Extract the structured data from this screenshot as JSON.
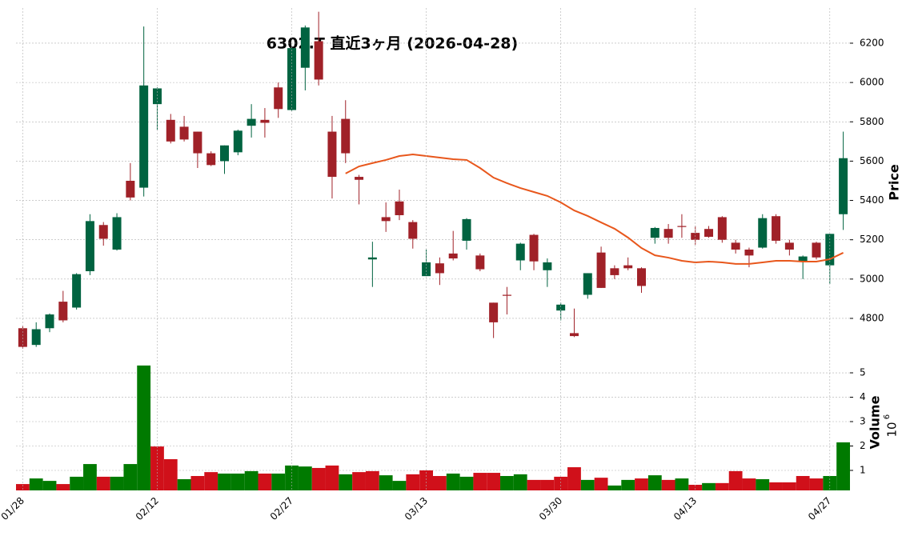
{
  "chart_data": [
    {
      "type": "candlestick",
      "title": "6302.T 直近3ヶ月 (2026-04-28)",
      "ylabel": "Price",
      "open": [
        4750,
        4665,
        4750,
        4885,
        4855,
        5040,
        5275,
        5150,
        5500,
        5465,
        5890,
        5810,
        5775,
        5750,
        5640,
        5600,
        5645,
        5780,
        5810,
        5975,
        5860,
        6075,
        6210,
        5750,
        5815,
        5520,
        5100,
        5315,
        5395,
        5290,
        5015,
        5080,
        5130,
        5195,
        5120,
        4880,
        4920,
        5095,
        5225,
        5045,
        4840,
        4725,
        4920,
        5135,
        5055,
        5070,
        5055,
        5210,
        5255,
        5270,
        5235,
        5255,
        5315,
        5185,
        5150,
        5160,
        5320,
        5185,
        5090,
        5185,
        5070,
        5330
      ],
      "high": [
        4760,
        4780,
        4825,
        4940,
        5030,
        5330,
        5290,
        5335,
        5590,
        6285,
        5975,
        5840,
        5830,
        5750,
        5650,
        5680,
        5760,
        5890,
        5870,
        6000,
        6180,
        6290,
        6360,
        5830,
        5910,
        5530,
        5190,
        5390,
        5455,
        5300,
        5150,
        5110,
        5245,
        5310,
        5130,
        4880,
        4960,
        5185,
        5230,
        5105,
        4880,
        4850,
        5030,
        5165,
        5070,
        5110,
        5060,
        5265,
        5280,
        5330,
        5270,
        5270,
        5320,
        5200,
        5160,
        5330,
        5330,
        5200,
        5120,
        5190,
        5230,
        5750
      ],
      "low": [
        4645,
        4655,
        4730,
        4780,
        4845,
        5020,
        5170,
        5145,
        5400,
        5420,
        5760,
        5690,
        5700,
        5565,
        5575,
        5535,
        5630,
        5720,
        5720,
        5820,
        5855,
        5960,
        5985,
        5410,
        5590,
        5380,
        4960,
        5240,
        5300,
        5155,
        5015,
        4970,
        5095,
        5150,
        5040,
        4700,
        4820,
        5045,
        5045,
        4960,
        4790,
        4705,
        4900,
        4955,
        5000,
        5045,
        4930,
        5180,
        5180,
        5210,
        5175,
        5210,
        5185,
        5130,
        5060,
        5155,
        5180,
        5120,
        5000,
        5100,
        4975,
        5250
      ],
      "close": [
        4655,
        4745,
        4820,
        4790,
        5025,
        5295,
        5205,
        5315,
        5415,
        5985,
        5970,
        5700,
        5710,
        5640,
        5580,
        5680,
        5755,
        5815,
        5795,
        5865,
        6175,
        6280,
        6015,
        5520,
        5640,
        5505,
        5110,
        5295,
        5325,
        5205,
        5085,
        5030,
        5105,
        5305,
        5050,
        4780,
        4915,
        5180,
        5090,
        5085,
        4870,
        4710,
        5030,
        4955,
        5020,
        5055,
        4965,
        5260,
        5210,
        5265,
        5200,
        5215,
        5200,
        5150,
        5120,
        5310,
        5195,
        5150,
        5115,
        5110,
        5230,
        5615
      ],
      "moving_average": {
        "color": "#e8571c",
        "values": [
          null,
          null,
          null,
          null,
          null,
          null,
          null,
          null,
          null,
          null,
          null,
          null,
          null,
          null,
          null,
          null,
          null,
          null,
          null,
          null,
          null,
          null,
          null,
          null,
          5537,
          5573,
          5590,
          5606,
          5626,
          5634,
          5626,
          5618,
          5610,
          5606,
          5565,
          5516,
          5488,
          5463,
          5443,
          5423,
          5390,
          5349,
          5321,
          5288,
          5256,
          5211,
          5158,
          5121,
          5109,
          5093,
          5085,
          5089,
          5085,
          5077,
          5077,
          5085,
          5093,
          5093,
          5089,
          5089,
          5101,
          5134
        ]
      },
      "up_color": "#006340",
      "down_color": "#a02128",
      "ylim": [
        4629,
        6379
      ],
      "yticks": [
        4800,
        5000,
        5200,
        5400,
        5600,
        5800,
        6000,
        6200
      ],
      "grid": true
    },
    {
      "type": "bar",
      "ylabel": "Volume",
      "offset_base": "10",
      "offset_exponent": "6",
      "categories": [
        "01/28",
        null,
        null,
        null,
        null,
        null,
        null,
        null,
        null,
        null,
        "02/12",
        null,
        null,
        null,
        null,
        null,
        null,
        null,
        null,
        null,
        "02/27",
        null,
        null,
        null,
        null,
        null,
        null,
        null,
        null,
        null,
        "03/13",
        null,
        null,
        null,
        null,
        null,
        null,
        null,
        null,
        null,
        "03/30",
        null,
        null,
        null,
        null,
        null,
        null,
        null,
        null,
        null,
        "04/13",
        null,
        null,
        null,
        null,
        null,
        null,
        null,
        null,
        null,
        "04/27",
        null
      ],
      "values": [
        0.44,
        0.67,
        0.57,
        0.44,
        0.74,
        1.26,
        0.74,
        0.74,
        1.26,
        5.3,
        1.98,
        1.46,
        0.64,
        0.77,
        0.93,
        0.87,
        0.87,
        0.97,
        0.87,
        0.87,
        1.2,
        1.16,
        1.1,
        1.2,
        0.84,
        0.93,
        0.97,
        0.8,
        0.57,
        0.84,
        1.0,
        0.77,
        0.87,
        0.74,
        0.9,
        0.9,
        0.77,
        0.84,
        0.61,
        0.61,
        0.74,
        1.13,
        0.61,
        0.7,
        0.38,
        0.61,
        0.67,
        0.8,
        0.61,
        0.67,
        0.41,
        0.48,
        0.48,
        0.97,
        0.67,
        0.64,
        0.51,
        0.51,
        0.77,
        0.67,
        0.77,
        2.15
      ],
      "up_color": "#007a00",
      "down_color": "#d0101a",
      "ylim": [
        0.18,
        5.46
      ],
      "yticks": [
        1,
        2,
        3,
        4,
        5
      ],
      "grid": true
    }
  ]
}
